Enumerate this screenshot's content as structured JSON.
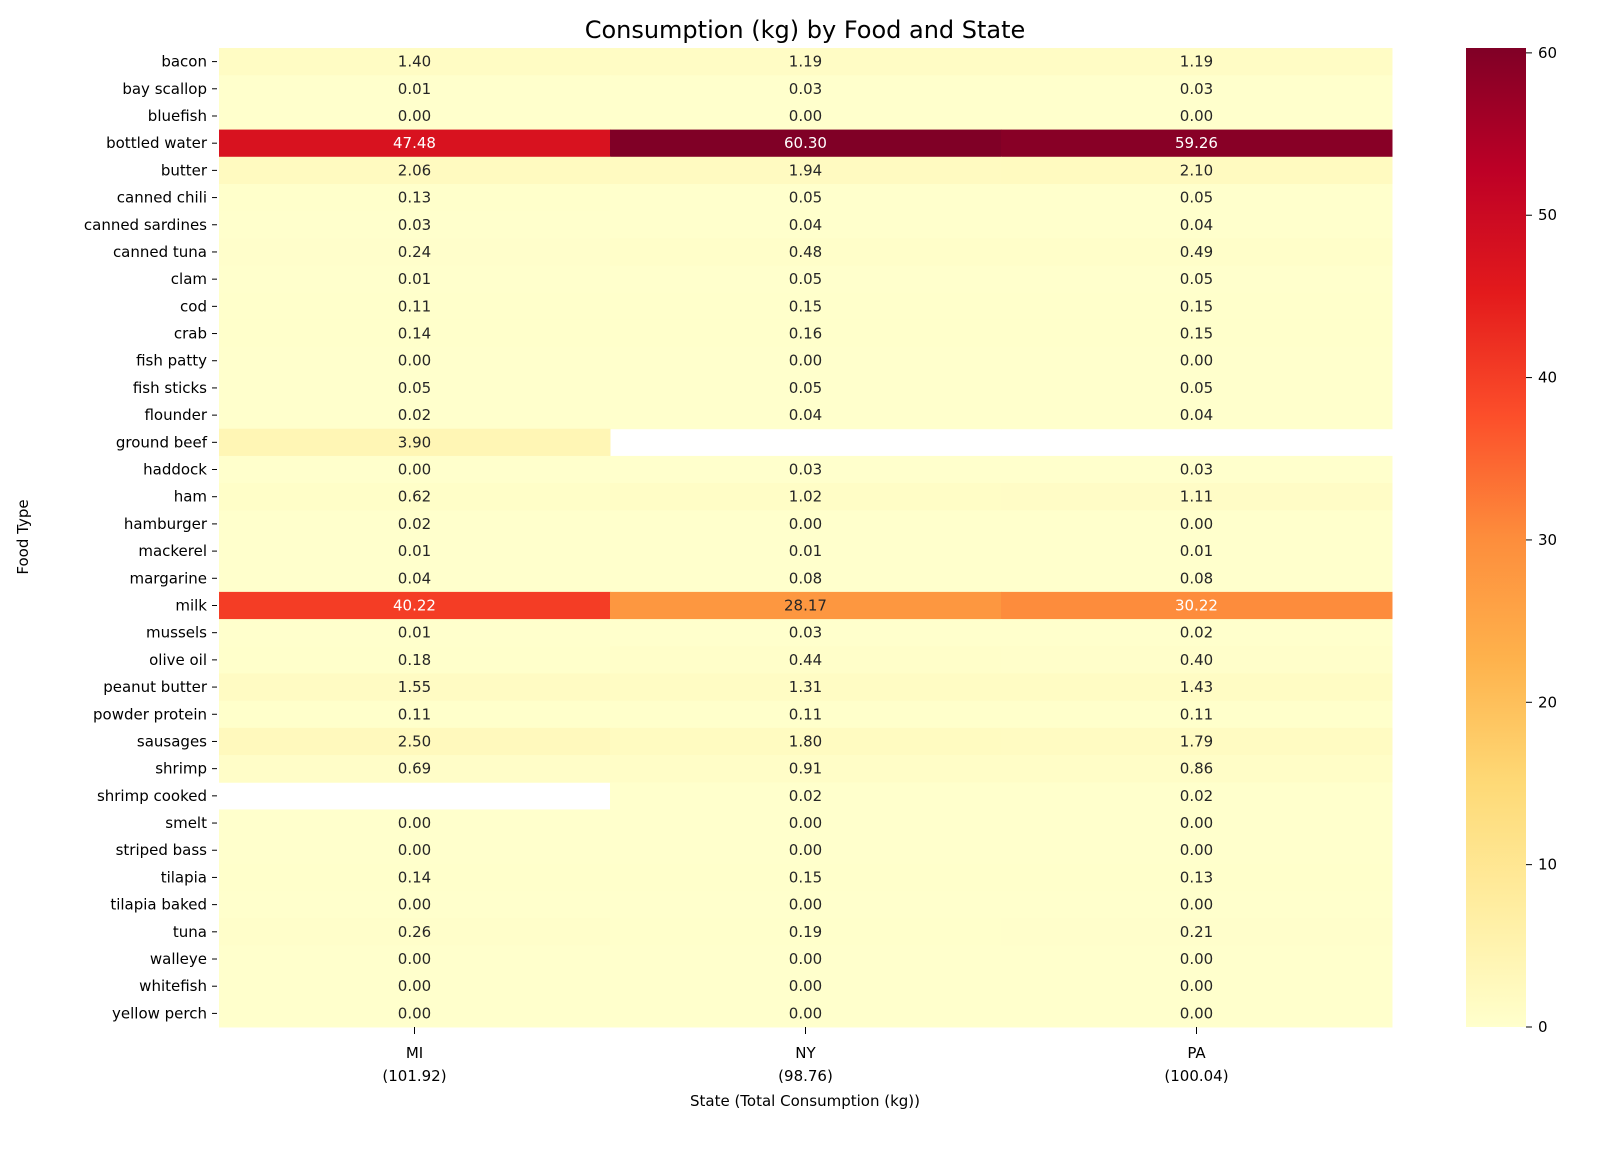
{
  "chart_data": {
    "type": "heatmap",
    "title": "Consumption (kg) by Food and State",
    "xlabel": "State (Total Consumption (kg))",
    "ylabel": "Food Type",
    "columns": [
      "MI",
      "NY",
      "PA"
    ],
    "column_totals": [
      "(101.92)",
      "(98.76)",
      "(100.04)"
    ],
    "rows": [
      "bacon",
      "bay scallop",
      "bluefish",
      "bottled water",
      "butter",
      "canned chili",
      "canned sardines",
      "canned tuna",
      "clam",
      "cod",
      "crab",
      "fish patty",
      "fish sticks",
      "flounder",
      "ground beef",
      "haddock",
      "ham",
      "hamburger",
      "mackerel",
      "margarine",
      "milk",
      "mussels",
      "olive oil",
      "peanut butter",
      "powder protein",
      "sausages",
      "shrimp",
      "shrimp cooked",
      "smelt",
      "striped bass",
      "tilapia",
      "tilapia baked",
      "tuna",
      "walleye",
      "whitefish",
      "yellow perch"
    ],
    "values": [
      [
        1.4,
        1.19,
        1.19
      ],
      [
        0.01,
        0.03,
        0.03
      ],
      [
        0.0,
        0.0,
        0.0
      ],
      [
        47.48,
        60.3,
        59.26
      ],
      [
        2.06,
        1.94,
        2.1
      ],
      [
        0.13,
        0.05,
        0.05
      ],
      [
        0.03,
        0.04,
        0.04
      ],
      [
        0.24,
        0.48,
        0.49
      ],
      [
        0.01,
        0.05,
        0.05
      ],
      [
        0.11,
        0.15,
        0.15
      ],
      [
        0.14,
        0.16,
        0.15
      ],
      [
        0.0,
        0.0,
        0.0
      ],
      [
        0.05,
        0.05,
        0.05
      ],
      [
        0.02,
        0.04,
        0.04
      ],
      [
        3.9,
        null,
        null
      ],
      [
        0.0,
        0.03,
        0.03
      ],
      [
        0.62,
        1.02,
        1.11
      ],
      [
        0.02,
        0.0,
        0.0
      ],
      [
        0.01,
        0.01,
        0.01
      ],
      [
        0.04,
        0.08,
        0.08
      ],
      [
        40.22,
        28.17,
        30.22
      ],
      [
        0.01,
        0.03,
        0.02
      ],
      [
        0.18,
        0.44,
        0.4
      ],
      [
        1.55,
        1.31,
        1.43
      ],
      [
        0.11,
        0.11,
        0.11
      ],
      [
        2.5,
        1.8,
        1.79
      ],
      [
        0.69,
        0.91,
        0.86
      ],
      [
        null,
        0.02,
        0.02
      ],
      [
        0.0,
        0.0,
        0.0
      ],
      [
        0.0,
        0.0,
        0.0
      ],
      [
        0.14,
        0.15,
        0.13
      ],
      [
        0.0,
        0.0,
        0.0
      ],
      [
        0.26,
        0.19,
        0.21
      ],
      [
        0.0,
        0.0,
        0.0
      ],
      [
        0.0,
        0.0,
        0.0
      ],
      [
        0.0,
        0.0,
        0.0
      ]
    ],
    "colormap": "YlOrRd",
    "colormap_stops": [
      "#ffffcc",
      "#ffeda0",
      "#fed976",
      "#feb24c",
      "#fd8d3c",
      "#fc4e2a",
      "#e31a1c",
      "#bd0026",
      "#800026"
    ],
    "vmin": 0,
    "vmax": 60.3,
    "colorbar_ticks": [
      0,
      10,
      20,
      30,
      40,
      50,
      60
    ],
    "grid": false,
    "legend": "colorbar-right"
  }
}
